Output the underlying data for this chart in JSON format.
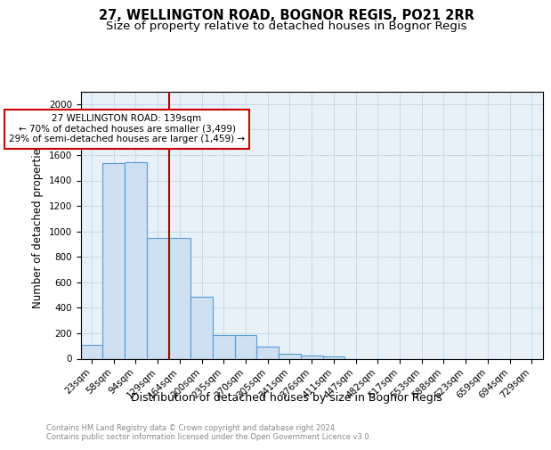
{
  "title": "27, WELLINGTON ROAD, BOGNOR REGIS, PO21 2RR",
  "subtitle": "Size of property relative to detached houses in Bognor Regis",
  "xlabel": "Distribution of detached houses by size in Bognor Regis",
  "ylabel": "Number of detached properties",
  "categories": [
    "23sqm",
    "58sqm",
    "94sqm",
    "129sqm",
    "164sqm",
    "200sqm",
    "235sqm",
    "270sqm",
    "305sqm",
    "341sqm",
    "376sqm",
    "411sqm",
    "447sqm",
    "482sqm",
    "517sqm",
    "553sqm",
    "588sqm",
    "623sqm",
    "659sqm",
    "694sqm",
    "729sqm"
  ],
  "values": [
    110,
    1540,
    1545,
    950,
    950,
    490,
    185,
    185,
    95,
    38,
    25,
    18,
    0,
    0,
    0,
    0,
    0,
    0,
    0,
    0,
    0
  ],
  "bar_color": "#cddff0",
  "bar_edge_color": "#5b9bd5",
  "vline_x": 3.5,
  "vline_color": "#aa0000",
  "annotation_text": "27 WELLINGTON ROAD: 139sqm\n← 70% of detached houses are smaller (3,499)\n29% of semi-detached houses are larger (1,459) →",
  "annotation_box_color": "#ffffff",
  "annotation_box_edge": "#cc0000",
  "ylim": [
    0,
    2100
  ],
  "yticks": [
    0,
    200,
    400,
    600,
    800,
    1000,
    1200,
    1400,
    1600,
    1800,
    2000
  ],
  "grid_color": "#c8d8e8",
  "bg_color": "#e8f0f8",
  "footnote": "Contains HM Land Registry data © Crown copyright and database right 2024.\nContains public sector information licensed under the Open Government Licence v3.0.",
  "title_fontsize": 10.5,
  "subtitle_fontsize": 9.5,
  "ylabel_fontsize": 8.5,
  "xlabel_fontsize": 9,
  "tick_fontsize": 7.5,
  "footnote_fontsize": 6,
  "footnote_color": "#888888"
}
